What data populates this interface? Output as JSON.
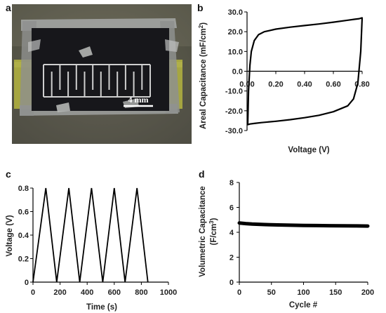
{
  "panel_labels": [
    "a",
    "b",
    "c",
    "d"
  ],
  "photo": {
    "scale_bar_label": "4 mm",
    "colors": {
      "background": "#5c5a4c",
      "device": "#17171b",
      "electrode_tabs": "#a6a640",
      "tape": "#9a9c9a",
      "pattern": "#c8c8c8"
    }
  },
  "chart_data": [
    {
      "panel": "b",
      "type": "line",
      "xlabel": "Voltage (V)",
      "ylabel": "Areal Capacitance (mF/cm²)",
      "ylabel_main": "Areal Capacitance (mF/cm",
      "ylabel_sup": "2",
      "ylabel_end": ")",
      "xlim": [
        0,
        0.8
      ],
      "ylim": [
        -30,
        30
      ],
      "xticks": [
        "0.00",
        "0.20",
        "0.40",
        "0.60",
        "0.80"
      ],
      "yticks": [
        "30.0",
        "20.0",
        "10.0",
        "0.0",
        "-10.0",
        "-20.0",
        "-30.0"
      ],
      "ytick_values": [
        30,
        20,
        10,
        0,
        -10,
        -20,
        -30
      ],
      "xtick_values": [
        0,
        0.2,
        0.4,
        0.6,
        0.8
      ],
      "series": [
        {
          "x": [
            0.005,
            0.01,
            0.02,
            0.03,
            0.05,
            0.08,
            0.12,
            0.2,
            0.3,
            0.4,
            0.5,
            0.6,
            0.7,
            0.75,
            0.78,
            0.79,
            0.8,
            0.79,
            0.77,
            0.74,
            0.7,
            0.6,
            0.5,
            0.4,
            0.3,
            0.2,
            0.1,
            0.05,
            0.02,
            0.01,
            0.005,
            0.005
          ],
          "y": [
            -27,
            -10,
            3,
            10,
            15.5,
            18.5,
            20,
            21.3,
            22.3,
            23.1,
            23.9,
            24.8,
            25.8,
            26.3,
            26.6,
            26.8,
            27,
            10,
            -6,
            -14,
            -17.5,
            -20.5,
            -22.3,
            -23.5,
            -24.5,
            -25.3,
            -26,
            -26.4,
            -26.7,
            -26.9,
            -27,
            -27
          ]
        }
      ]
    },
    {
      "panel": "c",
      "type": "line",
      "xlabel": "Time (s)",
      "ylabel": "Voltage (V)",
      "xlim": [
        0,
        1000
      ],
      "ylim": [
        0,
        0.8
      ],
      "xticks": [
        "0",
        "200",
        "400",
        "600",
        "800",
        "1000"
      ],
      "xtick_values": [
        0,
        200,
        400,
        600,
        800,
        1000
      ],
      "yticks": [
        "0",
        "0.2",
        "0.4",
        "0.6",
        "0.8"
      ],
      "ytick_values": [
        0,
        0.2,
        0.4,
        0.6,
        0.8
      ],
      "series": [
        {
          "x": [
            0,
            95,
            175,
            265,
            345,
            432,
            515,
            600,
            680,
            768,
            848
          ],
          "y": [
            0,
            0.8,
            0,
            0.8,
            0,
            0.8,
            0,
            0.8,
            0,
            0.8,
            0
          ]
        }
      ]
    },
    {
      "panel": "d",
      "type": "line",
      "xlabel": "Cycle #",
      "ylabel": "Volumetric Capacitance (F/cm³)",
      "ylabel_line1": "Volumetric Capacitance",
      "ylabel_line2_main": "(F/cm",
      "ylabel_line2_sup": "3",
      "ylabel_line2_end": ")",
      "xlim": [
        0,
        200
      ],
      "ylim": [
        0,
        8
      ],
      "xticks": [
        "0",
        "50",
        "100",
        "150",
        "200"
      ],
      "xtick_values": [
        0,
        50,
        100,
        150,
        200
      ],
      "yticks": [
        "8",
        "6",
        "4",
        "2",
        "0"
      ],
      "ytick_values": [
        8,
        6,
        4,
        2,
        0
      ],
      "series": [
        {
          "x": [
            0,
            10,
            20,
            40,
            60,
            80,
            100,
            120,
            140,
            160,
            180,
            200
          ],
          "y": [
            4.75,
            4.7,
            4.66,
            4.62,
            4.59,
            4.57,
            4.55,
            4.54,
            4.53,
            4.52,
            4.51,
            4.5
          ]
        }
      ]
    }
  ]
}
